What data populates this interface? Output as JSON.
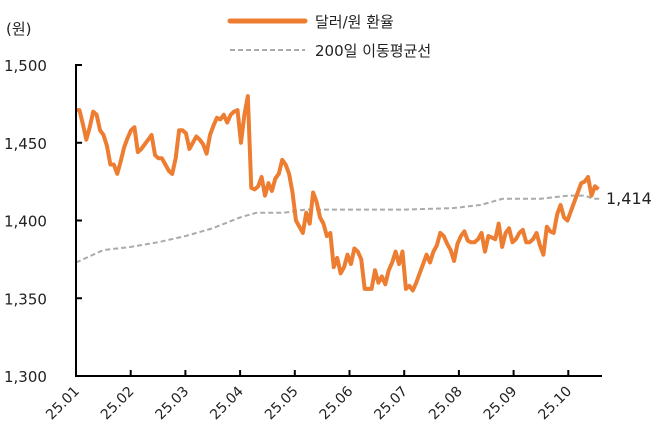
{
  "chart_data": {
    "type": "line",
    "unit_label": "(원)",
    "ylim": [
      1300,
      1500
    ],
    "yticks": [
      "1,300",
      "1,350",
      "1,400",
      "1,450",
      "1,500"
    ],
    "ytick_values": [
      1300,
      1350,
      1400,
      1450,
      1500
    ],
    "xticks": [
      "25.01",
      "25.02",
      "25.03",
      "25.04",
      "25.05",
      "25.06",
      "25.07",
      "25.08",
      "25.09",
      "25.10"
    ],
    "x_unit": "months since 2025-01",
    "xlim": [
      0,
      9.6
    ],
    "end_label": "1,414",
    "legend": {
      "placement": "top-center"
    },
    "series": [
      {
        "name": "달러/원 환율",
        "color": "#ED7D31",
        "style": "solid",
        "x_range": [
          0,
          9.55
        ],
        "values": [
          1471,
          1471,
          1462,
          1452,
          1460,
          1470,
          1468,
          1458,
          1455,
          1448,
          1436,
          1436,
          1430,
          1438,
          1447,
          1453,
          1458,
          1460,
          1444,
          1446,
          1449,
          1452,
          1455,
          1442,
          1440,
          1440,
          1436,
          1432,
          1430,
          1440,
          1458,
          1458,
          1456,
          1446,
          1450,
          1454,
          1452,
          1449,
          1443,
          1455,
          1461,
          1466,
          1465,
          1468,
          1463,
          1468,
          1470,
          1471,
          1450,
          1468,
          1480,
          1421,
          1420,
          1422,
          1428,
          1416,
          1424,
          1419,
          1427,
          1430,
          1439,
          1436,
          1430,
          1418,
          1400,
          1396,
          1392,
          1405,
          1398,
          1418,
          1412,
          1402,
          1398,
          1390,
          1392,
          1370,
          1376,
          1366,
          1370,
          1378,
          1372,
          1382,
          1380,
          1375,
          1356,
          1356,
          1356,
          1368,
          1360,
          1364,
          1359,
          1368,
          1373,
          1380,
          1372,
          1380,
          1356,
          1358,
          1355,
          1360,
          1366,
          1372,
          1378,
          1373,
          1380,
          1384,
          1392,
          1390,
          1385,
          1381,
          1374,
          1385,
          1390,
          1393,
          1387,
          1386,
          1386,
          1388,
          1392,
          1380,
          1390,
          1389,
          1388,
          1398,
          1383,
          1392,
          1395,
          1386,
          1388,
          1392,
          1394,
          1386,
          1386,
          1388,
          1392,
          1384,
          1378,
          1396,
          1393,
          1392,
          1404,
          1410,
          1402,
          1400,
          1406,
          1412,
          1418,
          1424,
          1425,
          1428,
          1416,
          1422,
          1420
        ]
      },
      {
        "name": "200일 이동평균선",
        "color": "#AAAAAA",
        "style": "dashed",
        "points": [
          [
            0,
            1373
          ],
          [
            0.5,
            1381
          ],
          [
            1.0,
            1383
          ],
          [
            1.5,
            1386
          ],
          [
            2.0,
            1390
          ],
          [
            2.5,
            1395
          ],
          [
            3.0,
            1402
          ],
          [
            3.3,
            1405
          ],
          [
            3.8,
            1405
          ],
          [
            4.2,
            1407
          ],
          [
            5.0,
            1407
          ],
          [
            6.0,
            1407
          ],
          [
            6.9,
            1408
          ],
          [
            7.4,
            1410
          ],
          [
            7.8,
            1414
          ],
          [
            8.5,
            1414
          ],
          [
            9.0,
            1416
          ],
          [
            9.3,
            1416
          ],
          [
            9.45,
            1414
          ],
          [
            9.6,
            1414
          ]
        ]
      }
    ]
  }
}
